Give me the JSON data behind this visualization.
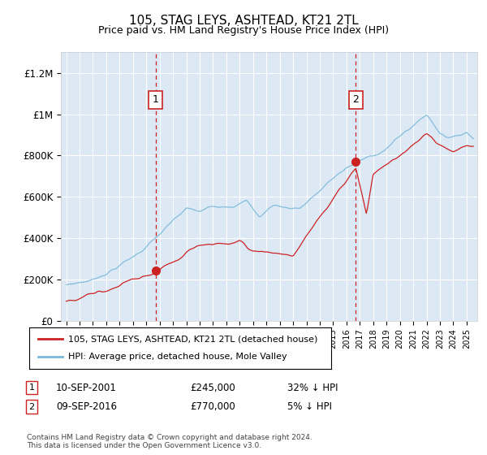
{
  "title": "105, STAG LEYS, ASHTEAD, KT21 2TL",
  "subtitle": "Price paid vs. HM Land Registry's House Price Index (HPI)",
  "background_color": "#dce9f5",
  "ylabel_ticks": [
    "£0",
    "£200K",
    "£400K",
    "£600K",
    "£800K",
    "£1M",
    "£1.2M"
  ],
  "ytick_values": [
    0,
    200000,
    400000,
    600000,
    800000,
    1000000,
    1200000
  ],
  "ylim": [
    0,
    1300000
  ],
  "xlim_start": 1994.6,
  "xlim_end": 2025.8,
  "marker1": {
    "date_x": 2001.7,
    "value": 245000,
    "label": "1",
    "text": "10-SEP-2001",
    "price": "£245,000",
    "pct": "32% ↓ HPI"
  },
  "marker2": {
    "date_x": 2016.7,
    "value": 770000,
    "label": "2",
    "text": "09-SEP-2016",
    "price": "£770,000",
    "pct": "5% ↓ HPI"
  },
  "legend_line1": "105, STAG LEYS, ASHTEAD, KT21 2TL (detached house)",
  "legend_line2": "HPI: Average price, detached house, Mole Valley",
  "footer": "Contains HM Land Registry data © Crown copyright and database right 2024.\nThis data is licensed under the Open Government Licence v3.0.",
  "hpi_color": "#7ab8d9",
  "price_color": "#cc2222",
  "dashed_line_color": "#cc2222",
  "grid_color": "#ffffff"
}
